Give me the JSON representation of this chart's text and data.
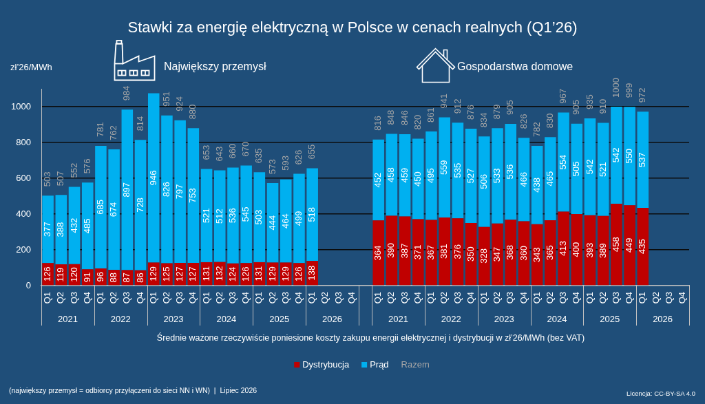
{
  "chart_data": {
    "type": "bar",
    "title": "Stawki za energię elektryczną w Polsce w cenach realnych (Q1’26)",
    "ylabel": "zł’26/MWh",
    "xlabel": "Średnie ważone rzeczywiście poniesione koszty zakupu energii elektrycznej i dystrybucji w zł’26/MWh (bez VAT)",
    "categories": [
      "Q1",
      "Q2",
      "Q3",
      "Q4",
      "Q1",
      "Q2",
      "Q3",
      "Q4",
      "Q1",
      "Q2",
      "Q3",
      "Q4",
      "Q1",
      "Q2",
      "Q3",
      "Q4",
      "Q1",
      "Q2",
      "Q3",
      "Q4",
      "Q1",
      "Q2",
      "Q3",
      "Q4",
      null,
      "Q1",
      "Q2",
      "Q3",
      "Q4",
      "Q1",
      "Q2",
      "Q3",
      "Q4",
      "Q1",
      "Q2",
      "Q3",
      "Q4",
      "Q1",
      "Q2",
      "Q3",
      "Q4",
      "Q1",
      "Q2",
      "Q3",
      "Q4",
      "Q1",
      "Q2",
      "Q3",
      "Q4"
    ],
    "series": [
      {
        "name": "Dystrybucja",
        "color": "#c00000",
        "values": [
          126,
          119,
          120,
          91,
          96,
          88,
          87,
          86,
          129,
          125,
          127,
          127,
          131,
          132,
          124,
          126,
          131,
          129,
          129,
          126,
          138,
          null,
          null,
          null,
          null,
          364,
          390,
          387,
          371,
          367,
          381,
          376,
          350,
          328,
          347,
          368,
          360,
          343,
          365,
          413,
          400,
          393,
          389,
          458,
          449,
          435,
          null,
          null,
          null
        ]
      },
      {
        "name": "Prąd",
        "color": "#00b0f0",
        "values": [
          377,
          388,
          432,
          485,
          685,
          674,
          897,
          728,
          946,
          826,
          797,
          753,
          521,
          512,
          536,
          545,
          503,
          444,
          464,
          499,
          518,
          null,
          null,
          null,
          null,
          452,
          458,
          459,
          450,
          495,
          559,
          535,
          527,
          506,
          533,
          536,
          466,
          438,
          465,
          554,
          505,
          542,
          521,
          542,
          550,
          537,
          null,
          null,
          null
        ]
      }
    ],
    "totals": [
      "503",
      "507",
      "552",
      "576",
      "781",
      "762",
      "984",
      "814",
      null,
      "951",
      "924",
      "880",
      "653",
      "643",
      "660",
      "670",
      "635",
      "573",
      "593",
      "626",
      "655",
      null,
      null,
      null,
      null,
      "816",
      "848",
      "846",
      "820",
      "861",
      "941",
      "912",
      "876",
      "834",
      "879",
      "905",
      "826",
      "782",
      "830",
      "967",
      "905",
      "935",
      "910",
      "1000",
      "999",
      "972",
      null,
      null,
      null
    ],
    "stacked": true,
    "data_labels": true,
    "ylim": [
      0,
      1100
    ],
    "yticks": [
      0,
      200,
      400,
      600,
      800,
      1000
    ],
    "grid": "y",
    "legend": "bottom",
    "annotations": [
      "Największy przemysł",
      "Gospodarstwa domowe",
      "2021",
      "2022",
      "2023",
      "2024",
      "2025",
      "2026",
      "2021",
      "2022",
      "2023",
      "2024",
      "2025",
      "2026",
      "Razem",
      "(największy przemysł = odbiorcy przyłączeni do sieci NN i WN)  |  Lipiec 2026",
      "Licencja: CC-BY-SA 4.0"
    ]
  }
}
